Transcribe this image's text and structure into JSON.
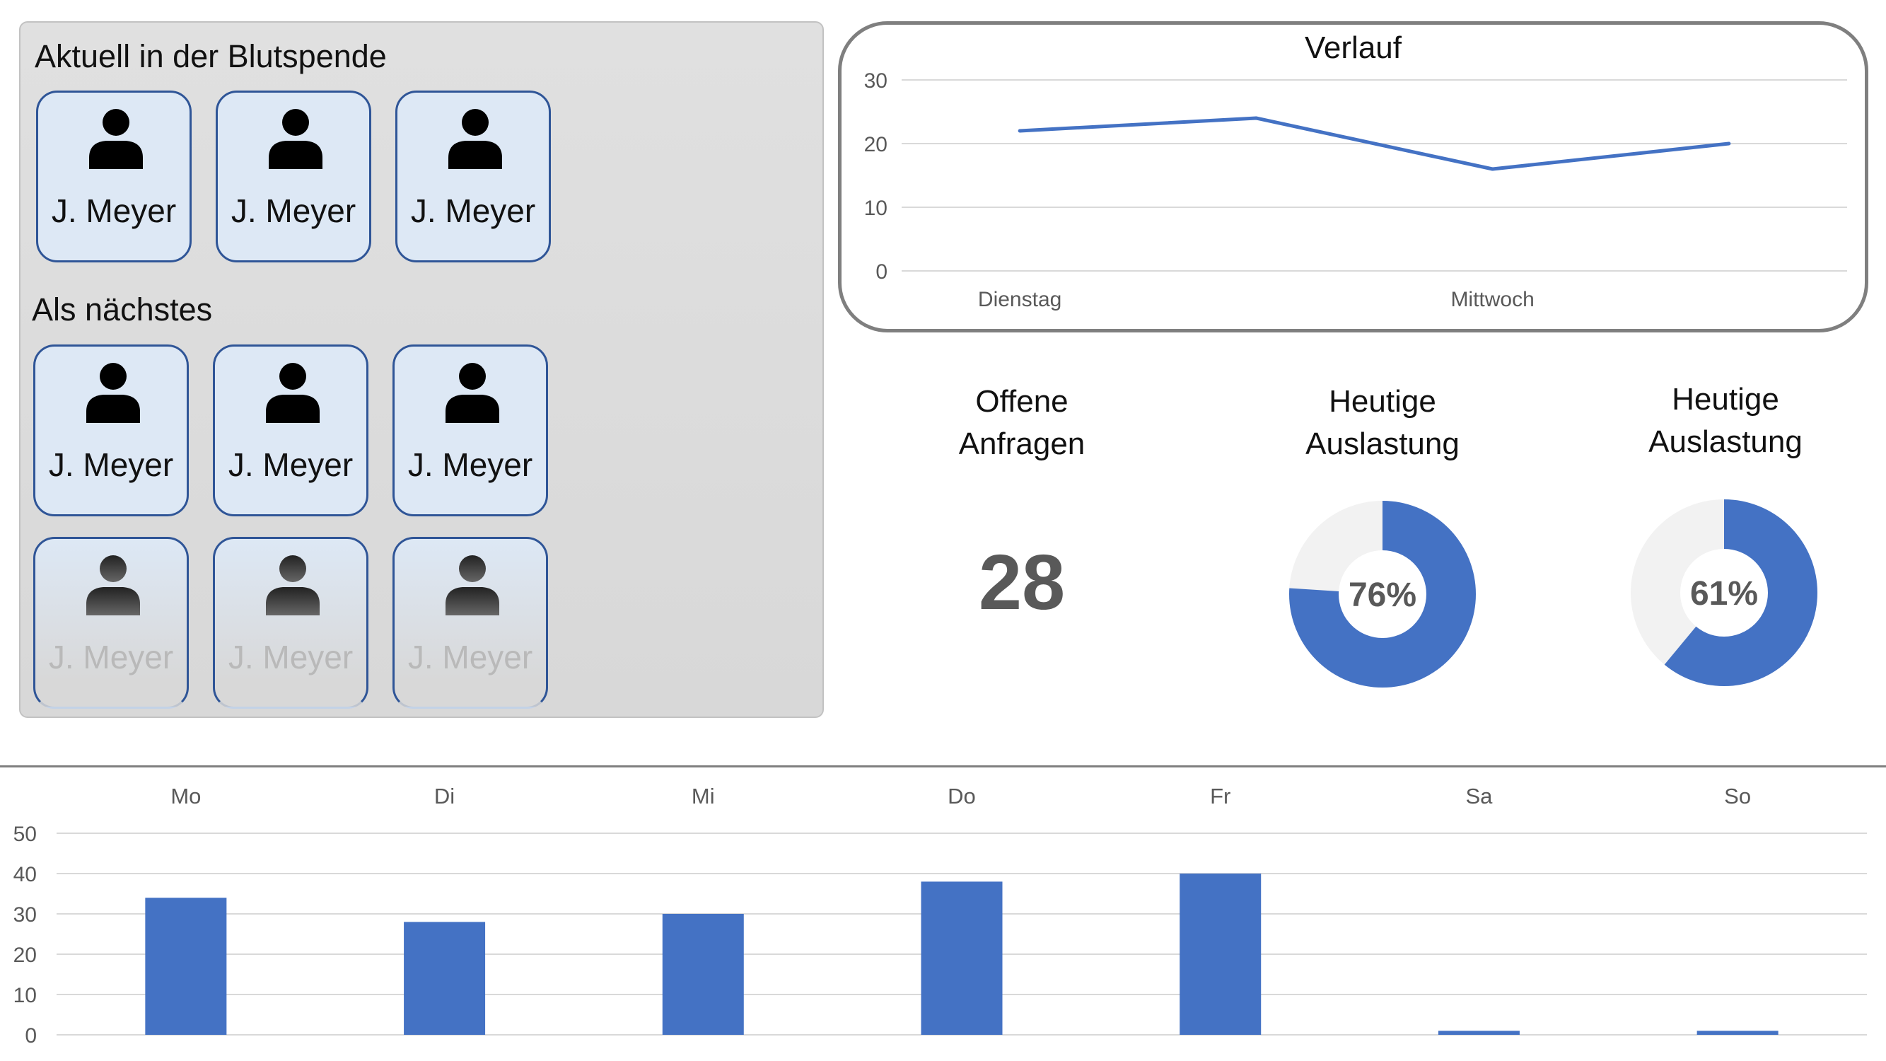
{
  "queue": {
    "current_title": "Aktuell in der Blutspende",
    "next_title": "Als nächstes",
    "current": [
      {
        "name": "J. Meyer"
      },
      {
        "name": "J. Meyer"
      },
      {
        "name": "J. Meyer"
      }
    ],
    "next": [
      {
        "name": "J. Meyer"
      },
      {
        "name": "J. Meyer"
      },
      {
        "name": "J. Meyer"
      }
    ],
    "later": [
      {
        "name": "J. Meyer"
      },
      {
        "name": "J. Meyer"
      },
      {
        "name": "J. Meyer"
      }
    ],
    "icon": "person-icon",
    "accent": "#2f5597",
    "card_fill": "#dde8f5"
  },
  "kpis": {
    "open_requests": {
      "label_line1": "Offene",
      "label_line2": "Anfragen",
      "value": "28"
    },
    "utilization_1": {
      "label_line1": "Heutige",
      "label_line2": "Auslastung",
      "value_label": "76%",
      "percent": 76
    },
    "utilization_2": {
      "label_line1": "Heutige",
      "label_line2": "Auslastung",
      "value_label": "61%",
      "percent": 61
    }
  },
  "chart_data": [
    {
      "type": "line",
      "title": "Verlauf",
      "x": [
        "Dienstag",
        "",
        "Mittwoch",
        ""
      ],
      "tick_labels_x": [
        "Dienstag",
        "Mittwoch"
      ],
      "series": [
        {
          "values": [
            22,
            24,
            16,
            20
          ]
        }
      ],
      "yticks": [
        0,
        10,
        20,
        30
      ],
      "ylim": [
        0,
        30
      ],
      "grid": true,
      "color": "#4472c4"
    },
    {
      "type": "bar",
      "categories": [
        "Mo",
        "Di",
        "Mi",
        "Do",
        "Fr",
        "Sa",
        "So"
      ],
      "values": [
        34,
        28,
        30,
        38,
        40,
        1,
        1
      ],
      "yticks": [
        0,
        10,
        20,
        30,
        40,
        50
      ],
      "ylim": [
        0,
        50
      ],
      "grid": true,
      "xaxis_position": "top",
      "color": "#4472c4"
    }
  ]
}
